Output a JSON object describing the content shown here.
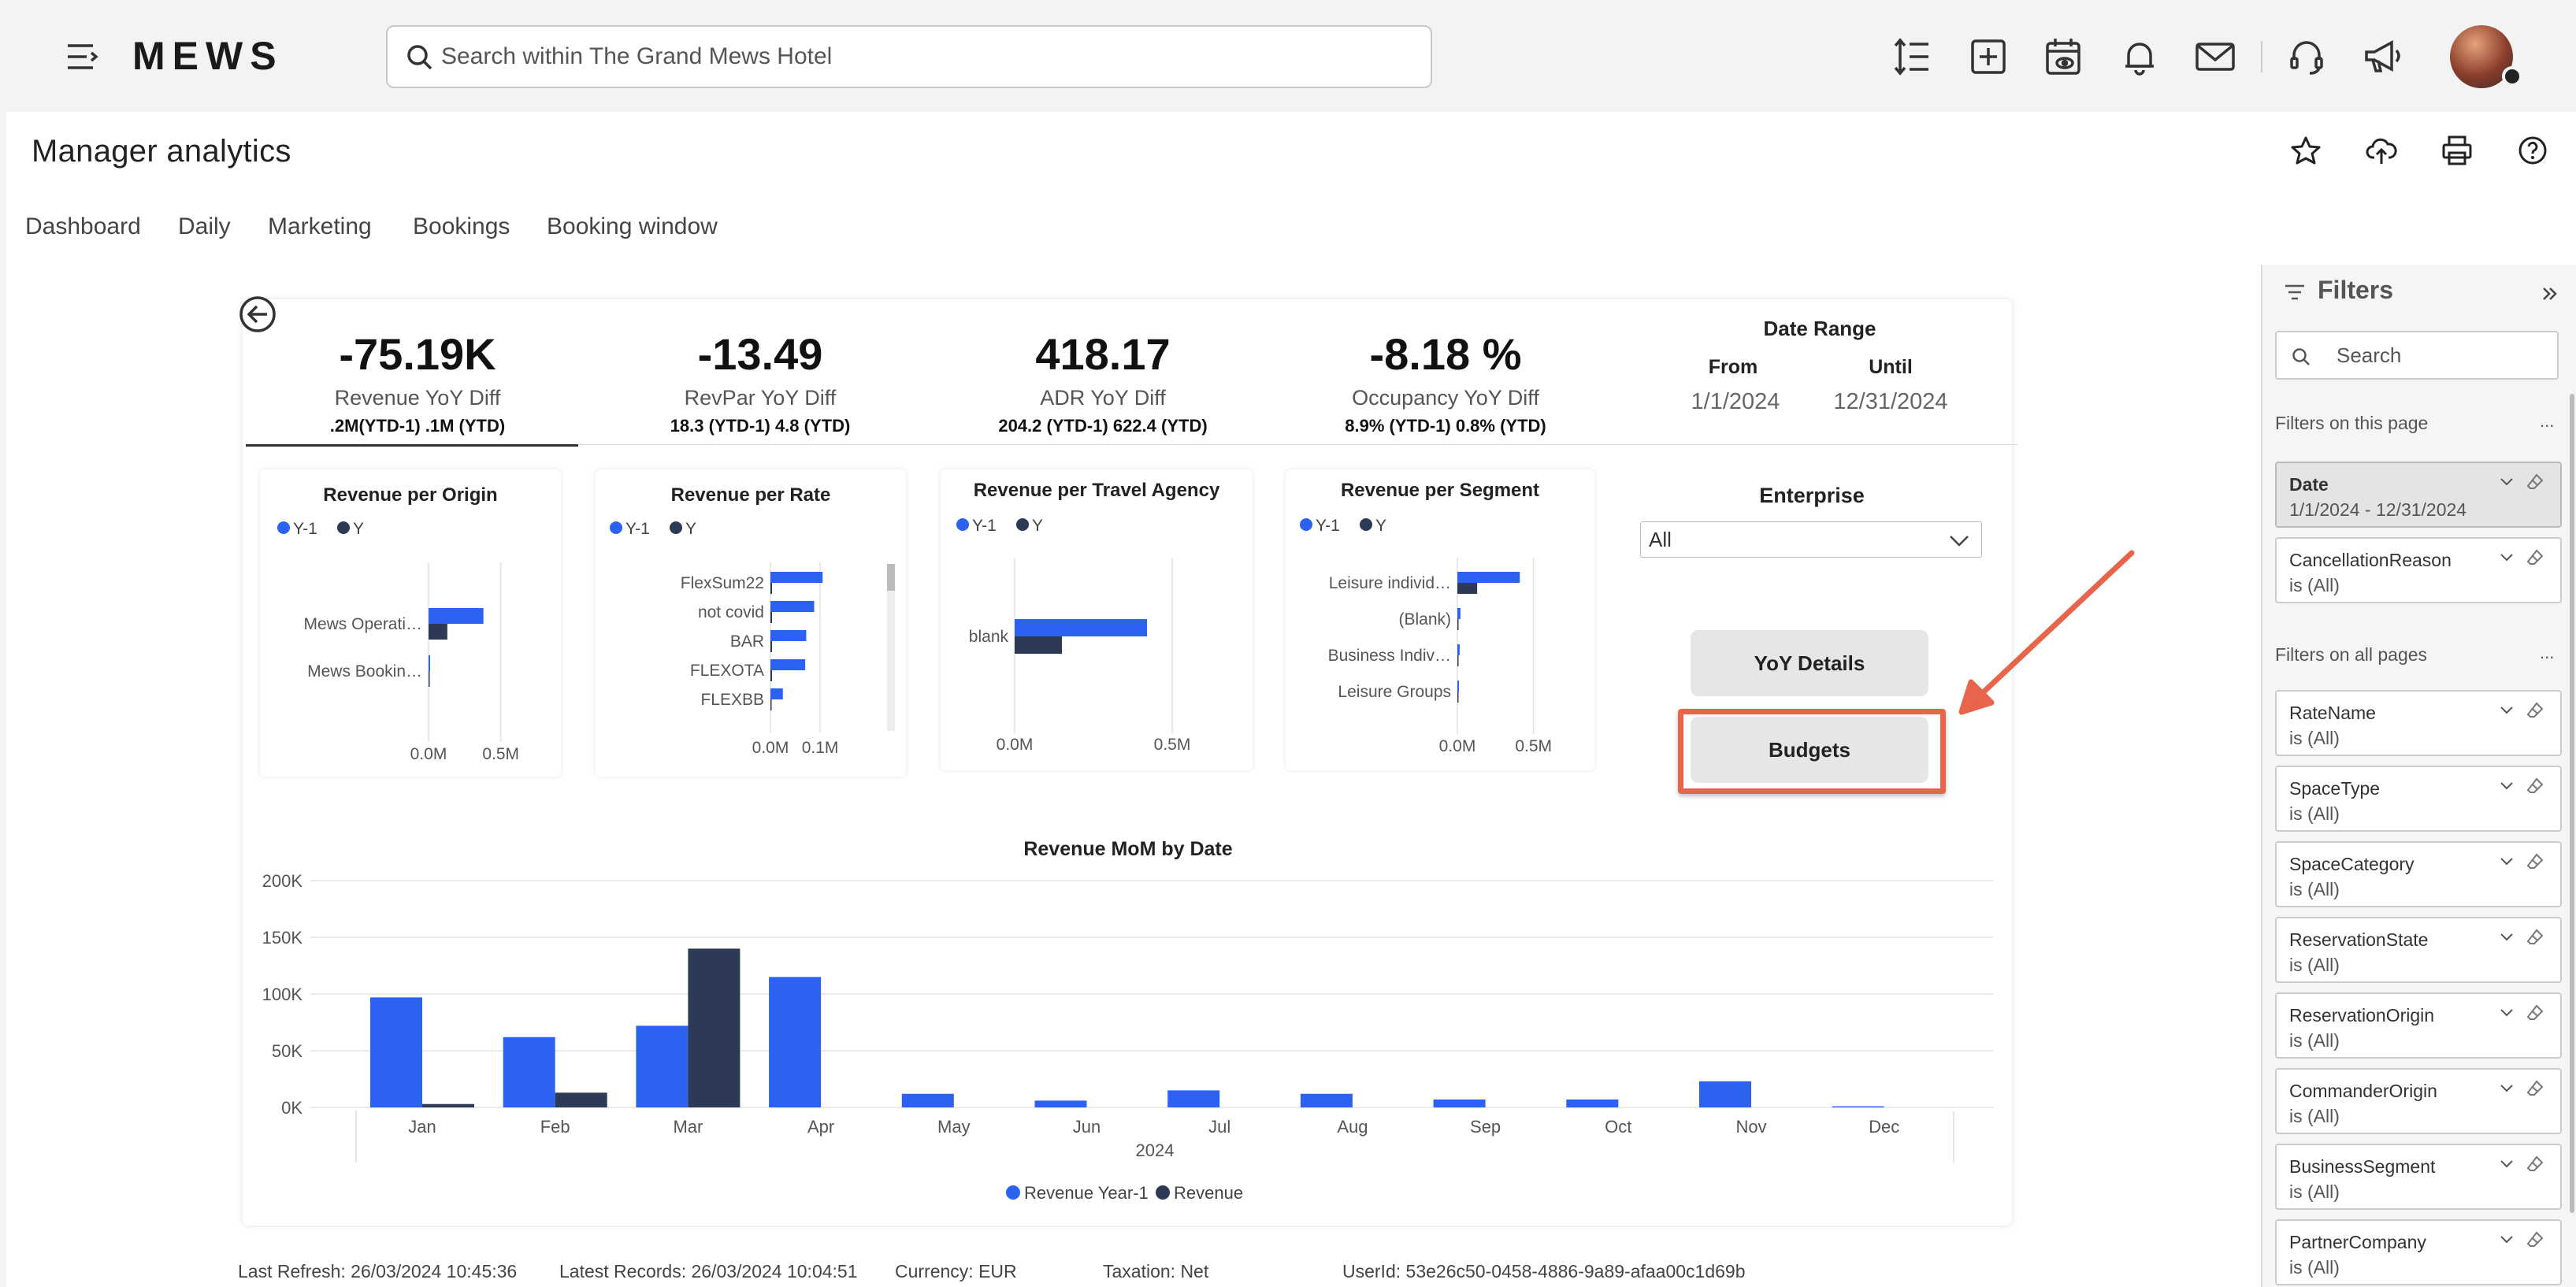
{
  "app": {
    "logo": "MEWS",
    "search_placeholder": "Search within The Grand Mews Hotel"
  },
  "toolbar_icons": [
    "line-spacing-icon",
    "add-square-icon",
    "calendar-view-icon",
    "bell-icon",
    "mail-icon",
    "headset-icon",
    "megaphone-icon"
  ],
  "page": {
    "title": "Manager analytics",
    "tabs": [
      "Dashboard",
      "Daily",
      "Marketing",
      "Bookings",
      "Booking window"
    ]
  },
  "kpis": [
    {
      "value": "-75.19K",
      "label": "Revenue YoY Diff",
      "sub": ".2M(YTD-1) .1M (YTD)"
    },
    {
      "value": "-13.49",
      "label": "RevPar YoY Diff",
      "sub": "18.3 (YTD-1) 4.8 (YTD)"
    },
    {
      "value": "418.17",
      "label": "ADR YoY Diff",
      "sub": "204.2 (YTD-1) 622.4 (YTD)"
    },
    {
      "value": "-8.18 %",
      "label": "Occupancy YoY Diff",
      "sub": "8.9% (YTD-1) 0.8% (YTD)"
    }
  ],
  "date_range": {
    "title": "Date Range",
    "from_label": "From",
    "until_label": "Until",
    "from": "1/1/2024",
    "until": "12/31/2024"
  },
  "enterprise": {
    "title": "Enterprise",
    "value": "All"
  },
  "buttons": {
    "yoy": "YoY Details",
    "budgets": "Budgets"
  },
  "legend_small": {
    "prev": "Y-1",
    "curr": "Y"
  },
  "colors": {
    "prev": "#2b63f0",
    "curr": "#2d3a55",
    "accent": "#e8644a"
  },
  "chart_data": [
    {
      "type": "bar",
      "orientation": "horizontal",
      "title": "Revenue per Origin",
      "categories": [
        "Mews Operati…",
        "Mews Bookin…"
      ],
      "series": [
        {
          "name": "Y-1",
          "values": [
            0.38,
            0.004
          ]
        },
        {
          "name": "Y",
          "values": [
            0.13,
            0.0
          ]
        }
      ],
      "x_ticks": [
        "0.0M",
        "0.5M"
      ],
      "xlim": [
        0,
        0.6
      ]
    },
    {
      "type": "bar",
      "orientation": "horizontal",
      "title": "Revenue per Rate",
      "categories": [
        "FlexSum22",
        "not covid",
        "BAR",
        "FLEXOTA",
        "FLEXBB"
      ],
      "series": [
        {
          "name": "Y-1",
          "values": [
            0.105,
            0.088,
            0.072,
            0.07,
            0.025
          ]
        },
        {
          "name": "Y",
          "values": [
            0.003,
            0.002,
            0.002,
            0.001,
            0.0
          ]
        }
      ],
      "x_ticks": [
        "0.0M",
        "0.1M"
      ],
      "xlim": [
        0,
        0.13
      ]
    },
    {
      "type": "bar",
      "orientation": "horizontal",
      "title": "Revenue per Travel Agency",
      "categories": [
        "blank"
      ],
      "series": [
        {
          "name": "Y-1",
          "values": [
            0.42
          ]
        },
        {
          "name": "Y",
          "values": [
            0.15
          ]
        }
      ],
      "x_ticks": [
        "0.0M",
        "0.5M"
      ],
      "xlim": [
        0,
        0.55
      ]
    },
    {
      "type": "bar",
      "orientation": "horizontal",
      "title": "Revenue per Segment",
      "categories": [
        "Leisure individ…",
        "(Blank)",
        "Business Indiv…",
        "Leisure Groups"
      ],
      "series": [
        {
          "name": "Y-1",
          "values": [
            0.41,
            0.02,
            0.015,
            0.005
          ]
        },
        {
          "name": "Y",
          "values": [
            0.13,
            0.0,
            0.0,
            0.0
          ]
        }
      ],
      "x_ticks": [
        "0.0M",
        "0.5M"
      ],
      "xlim": [
        0,
        0.6
      ]
    },
    {
      "type": "bar",
      "title": "Revenue MoM by Date",
      "categories": [
        "Jan",
        "Feb",
        "Mar",
        "Apr",
        "May",
        "Jun",
        "Jul",
        "Aug",
        "Sep",
        "Oct",
        "Nov",
        "Dec"
      ],
      "xlabel": "2024",
      "series": [
        {
          "name": "Revenue Year-1",
          "values": [
            97000,
            62000,
            72000,
            115000,
            12000,
            6000,
            15000,
            12000,
            7000,
            7000,
            23000,
            1000
          ]
        },
        {
          "name": "Revenue",
          "values": [
            3000,
            13000,
            140000,
            0,
            0,
            0,
            0,
            0,
            0,
            0,
            0,
            0
          ]
        }
      ],
      "y_ticks": [
        "0K",
        "50K",
        "100K",
        "150K",
        "200K"
      ],
      "ylim": [
        0,
        200000
      ],
      "legend": "bottom-center"
    }
  ],
  "status": {
    "last_refresh": "Last Refresh: 26/03/2024 10:45:36",
    "latest_records": "Latest Records: 26/03/2024 10:04:51",
    "currency": "Currency: EUR",
    "taxation": "Taxation: Net",
    "user_id": "UserId: 53e26c50-0458-4886-9a89-afaa00c1d69b"
  },
  "filters": {
    "title": "Filters",
    "search_placeholder": "Search",
    "on_page_label": "Filters on this page",
    "all_pages_label": "Filters on all pages",
    "more": "...",
    "on_page": [
      {
        "name": "Date",
        "value": "1/1/2024 - 12/31/2024"
      },
      {
        "name": "CancellationReason",
        "value": "is (All)"
      }
    ],
    "all_pages": [
      {
        "name": "RateName",
        "value": "is (All)"
      },
      {
        "name": "SpaceType",
        "value": "is (All)"
      },
      {
        "name": "SpaceCategory",
        "value": "is (All)"
      },
      {
        "name": "ReservationState",
        "value": "is (All)"
      },
      {
        "name": "ReservationOrigin",
        "value": "is (All)"
      },
      {
        "name": "CommanderOrigin",
        "value": "is (All)"
      },
      {
        "name": "BusinessSegment",
        "value": "is (All)"
      },
      {
        "name": "PartnerCompany",
        "value": "is (All)"
      }
    ]
  }
}
